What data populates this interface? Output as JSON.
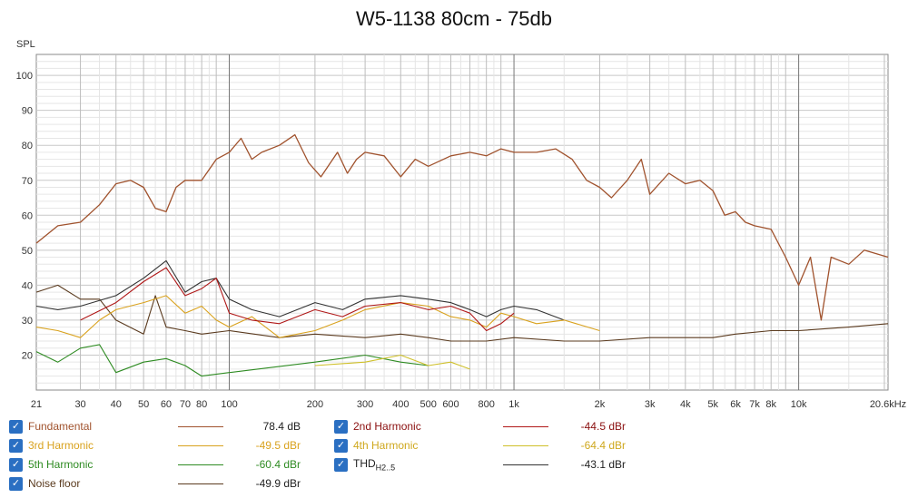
{
  "chart_data": {
    "type": "line",
    "title": "W5-1138 80cm - 75db",
    "ylabel": "SPL",
    "xlabel": "",
    "x_scale": "log",
    "xlim": [
      21,
      20600
    ],
    "ylim": [
      10,
      106
    ],
    "y_ticks": [
      20,
      30,
      40,
      50,
      60,
      70,
      80,
      90,
      100
    ],
    "x_ticks": [
      {
        "v": 21,
        "label": "21"
      },
      {
        "v": 30,
        "label": "30"
      },
      {
        "v": 40,
        "label": "40"
      },
      {
        "v": 50,
        "label": "50"
      },
      {
        "v": 60,
        "label": "60"
      },
      {
        "v": 70,
        "label": "70"
      },
      {
        "v": 80,
        "label": "80"
      },
      {
        "v": 100,
        "label": "100"
      },
      {
        "v": 200,
        "label": "200"
      },
      {
        "v": 300,
        "label": "300"
      },
      {
        "v": 400,
        "label": "400"
      },
      {
        "v": 500,
        "label": "500"
      },
      {
        "v": 600,
        "label": "600"
      },
      {
        "v": 800,
        "label": "800"
      },
      {
        "v": 1000,
        "label": "1k"
      },
      {
        "v": 2000,
        "label": "2k"
      },
      {
        "v": 3000,
        "label": "3k"
      },
      {
        "v": 4000,
        "label": "4k"
      },
      {
        "v": 5000,
        "label": "5k"
      },
      {
        "v": 6000,
        "label": "6k"
      },
      {
        "v": 7000,
        "label": "7k"
      },
      {
        "v": 8000,
        "label": "8k"
      },
      {
        "v": 10000,
        "label": "10k"
      },
      {
        "v": 20600,
        "label": "20.6kHz"
      }
    ],
    "grid": true,
    "series": [
      {
        "name": "Fundamental",
        "value": "78.4 dB",
        "color": "#a0522d",
        "checked": true,
        "x": [
          21,
          25,
          30,
          35,
          40,
          45,
          50,
          55,
          60,
          65,
          70,
          80,
          90,
          100,
          110,
          120,
          130,
          150,
          170,
          190,
          210,
          240,
          260,
          280,
          300,
          350,
          400,
          450,
          500,
          600,
          700,
          800,
          900,
          1000,
          1200,
          1400,
          1600,
          1800,
          2000,
          2200,
          2500,
          2800,
          3000,
          3500,
          4000,
          4500,
          5000,
          5500,
          6000,
          6500,
          7000,
          8000,
          9000,
          10000,
          11000,
          12000,
          13000,
          15000,
          17000,
          20600
        ],
        "y": [
          52,
          57,
          58,
          63,
          69,
          70,
          68,
          62,
          61,
          68,
          70,
          70,
          76,
          78,
          82,
          76,
          78,
          80,
          83,
          75,
          71,
          78,
          72,
          76,
          78,
          77,
          71,
          76,
          74,
          77,
          78,
          77,
          79,
          78,
          78,
          79,
          76,
          70,
          68,
          65,
          70,
          76,
          66,
          72,
          69,
          70,
          67,
          60,
          61,
          58,
          57,
          56,
          48,
          40,
          48,
          30,
          48,
          46,
          50,
          48
        ]
      },
      {
        "name": "2nd Harmonic",
        "value": "-44.5 dBr",
        "color": "#b01818",
        "checked": true,
        "x": [
          30,
          40,
          50,
          60,
          70,
          80,
          90,
          100,
          120,
          150,
          200,
          250,
          300,
          400,
          500,
          600,
          700,
          800,
          900,
          1000
        ],
        "y": [
          30,
          35,
          41,
          45,
          37,
          39,
          42,
          32,
          30,
          29,
          33,
          31,
          34,
          35,
          33,
          34,
          32,
          27,
          29,
          32
        ]
      },
      {
        "name": "3rd Harmonic",
        "value": "-49.5 dBr",
        "color": "#d9a21e",
        "checked": true,
        "x": [
          21,
          25,
          30,
          35,
          40,
          50,
          60,
          70,
          80,
          90,
          100,
          120,
          150,
          200,
          250,
          300,
          400,
          500,
          600,
          700,
          800,
          900,
          1000,
          1200,
          1500,
          2000
        ],
        "y": [
          28,
          27,
          25,
          30,
          33,
          35,
          37,
          32,
          34,
          30,
          28,
          31,
          25,
          27,
          30,
          33,
          35,
          34,
          31,
          30,
          28,
          32,
          31,
          29,
          30,
          27
        ]
      },
      {
        "name": "4th Harmonic",
        "value": "-64.4 dBr",
        "color": "#cfc02a",
        "checked": true,
        "x": [
          200,
          300,
          400,
          500,
          600,
          700
        ],
        "y": [
          17,
          18,
          20,
          17,
          18,
          16
        ]
      },
      {
        "name": "5th Harmonic",
        "value": "-60.4 dBr",
        "color": "#2e8b22",
        "checked": true,
        "x": [
          21,
          25,
          30,
          35,
          40,
          50,
          60,
          70,
          80,
          100,
          200,
          300,
          400,
          500
        ],
        "y": [
          21,
          18,
          22,
          23,
          15,
          18,
          19,
          17,
          14,
          15,
          18,
          20,
          18,
          17
        ]
      },
      {
        "name": "THD H2..5",
        "value": "-43.1 dBr",
        "color": "#333333",
        "checked": true,
        "x": [
          21,
          25,
          30,
          40,
          50,
          60,
          70,
          80,
          90,
          100,
          120,
          150,
          200,
          250,
          300,
          400,
          500,
          600,
          700,
          800,
          900,
          1000,
          1200,
          1500
        ],
        "y": [
          34,
          33,
          34,
          37,
          42,
          47,
          38,
          41,
          42,
          36,
          33,
          31,
          35,
          33,
          36,
          37,
          36,
          35,
          33,
          31,
          33,
          34,
          33,
          30
        ]
      },
      {
        "name": "Noise floor",
        "value": "-49.9 dBr",
        "color": "#5a3a1e",
        "checked": true,
        "x": [
          21,
          25,
          30,
          35,
          40,
          50,
          55,
          60,
          70,
          80,
          100,
          150,
          200,
          300,
          400,
          500,
          600,
          800,
          1000,
          1500,
          2000,
          3000,
          4000,
          5000,
          6000,
          8000,
          10000,
          15000,
          20600
        ],
        "y": [
          38,
          40,
          36,
          36,
          30,
          26,
          37,
          28,
          27,
          26,
          27,
          25,
          26,
          25,
          26,
          25,
          24,
          24,
          25,
          24,
          24,
          25,
          25,
          25,
          26,
          27,
          27,
          28,
          29
        ]
      }
    ]
  },
  "legend": {
    "fundamental": {
      "label": "Fundamental",
      "value": "78.4 dB"
    },
    "h2": {
      "label": "2nd Harmonic",
      "value": "-44.5 dBr"
    },
    "h3": {
      "label": "3rd Harmonic",
      "value": "-49.5 dBr"
    },
    "h4": {
      "label": "4th Harmonic",
      "value": "-64.4 dBr"
    },
    "h5": {
      "label": "5th Harmonic",
      "value": "-60.4 dBr"
    },
    "thd": {
      "label": "THD",
      "sub": "H2..5",
      "value": "-43.1 dBr"
    },
    "noise": {
      "label": "Noise floor",
      "value": "-49.9 dBr"
    }
  }
}
